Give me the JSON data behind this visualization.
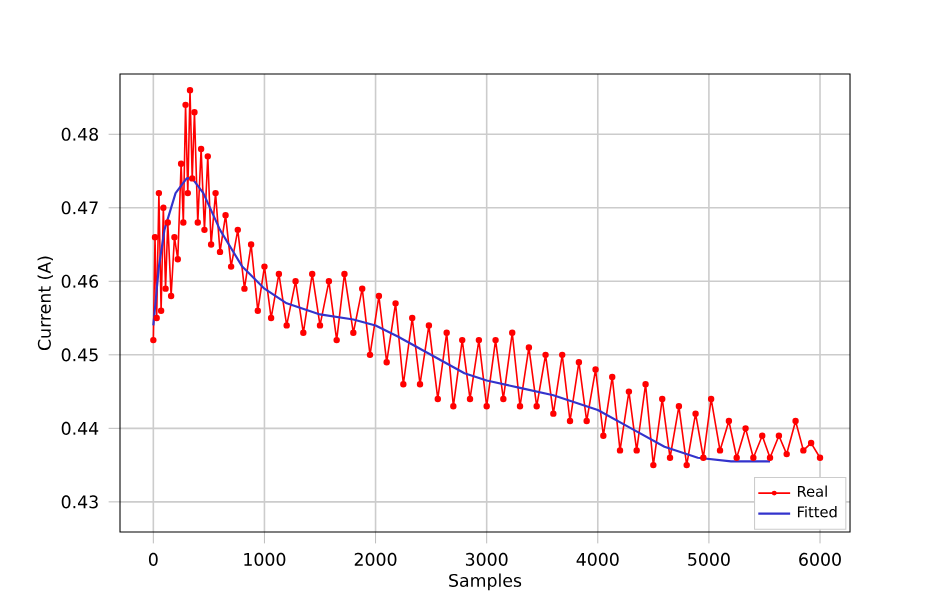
{
  "chart_data": {
    "type": "line",
    "xlabel": "Samples",
    "ylabel": "Current (A)",
    "xlim": [
      -300,
      6270
    ],
    "ylim": [
      0.4259,
      0.4882
    ],
    "xticks": [
      0,
      1000,
      2000,
      3000,
      4000,
      5000,
      6000
    ],
    "yticks": [
      0.43,
      0.44,
      0.45,
      0.46,
      0.47,
      0.48
    ],
    "grid": true,
    "legend": "bottom right",
    "series": [
      {
        "name": "Real",
        "color": "#ff0000",
        "marker": "circle",
        "x": [
          0,
          15,
          30,
          50,
          70,
          90,
          110,
          130,
          160,
          190,
          220,
          250,
          270,
          290,
          310,
          330,
          350,
          370,
          400,
          430,
          460,
          490,
          520,
          560,
          600,
          650,
          700,
          760,
          820,
          880,
          940,
          1000,
          1060,
          1130,
          1200,
          1280,
          1350,
          1430,
          1500,
          1580,
          1650,
          1720,
          1800,
          1880,
          1950,
          2030,
          2100,
          2180,
          2250,
          2330,
          2400,
          2480,
          2560,
          2640,
          2700,
          2780,
          2850,
          2930,
          3000,
          3080,
          3150,
          3230,
          3300,
          3380,
          3450,
          3530,
          3600,
          3680,
          3750,
          3830,
          3900,
          3980,
          4050,
          4130,
          4200,
          4280,
          4350,
          4430,
          4500,
          4580,
          4650,
          4730,
          4800,
          4880,
          4950,
          5020,
          5100,
          5180,
          5250,
          5330,
          5400,
          5480,
          5550,
          5630,
          5700,
          5780,
          5850,
          5920,
          6000
        ],
        "values": [
          0.452,
          0.466,
          0.455,
          0.472,
          0.456,
          0.47,
          0.459,
          0.468,
          0.458,
          0.466,
          0.463,
          0.476,
          0.468,
          0.484,
          0.472,
          0.486,
          0.474,
          0.483,
          0.468,
          0.478,
          0.467,
          0.477,
          0.465,
          0.472,
          0.464,
          0.469,
          0.462,
          0.467,
          0.459,
          0.465,
          0.456,
          0.462,
          0.455,
          0.461,
          0.454,
          0.46,
          0.453,
          0.461,
          0.454,
          0.46,
          0.452,
          0.461,
          0.453,
          0.459,
          0.45,
          0.458,
          0.449,
          0.457,
          0.446,
          0.455,
          0.446,
          0.454,
          0.444,
          0.453,
          0.443,
          0.452,
          0.444,
          0.452,
          0.443,
          0.452,
          0.444,
          0.453,
          0.443,
          0.451,
          0.443,
          0.45,
          0.442,
          0.45,
          0.441,
          0.449,
          0.441,
          0.448,
          0.439,
          0.447,
          0.437,
          0.445,
          0.437,
          0.446,
          0.435,
          0.444,
          0.436,
          0.443,
          0.435,
          0.442,
          0.436,
          0.444,
          0.437,
          0.441,
          0.436,
          0.44,
          0.436,
          0.439,
          0.436,
          0.439,
          0.4365,
          0.441,
          0.437,
          0.438,
          0.436
        ]
      },
      {
        "name": "Fitted",
        "color": "#3333cc",
        "marker": "none",
        "x": [
          0,
          50,
          100,
          200,
          300,
          350,
          450,
          600,
          800,
          1000,
          1200,
          1500,
          1800,
          2000,
          2200,
          2500,
          2800,
          3000,
          3300,
          3600,
          4000,
          4300,
          4600,
          4900,
          5200,
          5550
        ],
        "values": [
          0.454,
          0.462,
          0.467,
          0.472,
          0.474,
          0.474,
          0.472,
          0.467,
          0.462,
          0.459,
          0.457,
          0.4555,
          0.4548,
          0.454,
          0.4525,
          0.45,
          0.4475,
          0.4465,
          0.4455,
          0.4445,
          0.4425,
          0.44,
          0.4375,
          0.436,
          0.4355,
          0.4355
        ]
      }
    ]
  }
}
